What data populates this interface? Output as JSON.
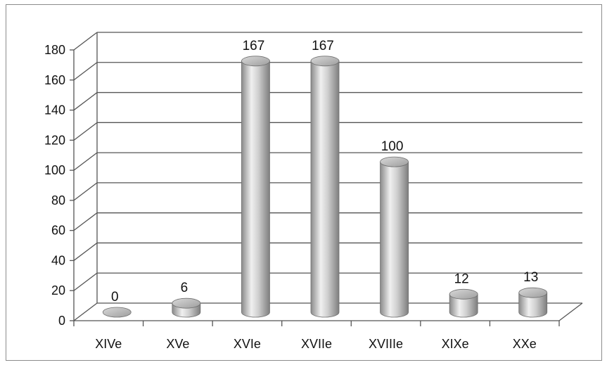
{
  "chart_data": {
    "type": "bar",
    "style": "3d-cylinder",
    "title": "",
    "xlabel": "",
    "ylabel": "",
    "categories": [
      "XIVe",
      "XVe",
      "XVIe",
      "XVIIe",
      "XVIIIe",
      "XIXe",
      "XXe"
    ],
    "values": [
      0,
      6,
      167,
      167,
      100,
      12,
      13
    ],
    "data_labels": [
      "0",
      "6",
      "167",
      "167",
      "100",
      "12",
      "13"
    ],
    "ylim": [
      0,
      180
    ],
    "yticks": [
      "0",
      "20",
      "40",
      "60",
      "80",
      "100",
      "120",
      "140",
      "160",
      "180"
    ],
    "grid": true,
    "legend": "none",
    "colors": {
      "bar": "#a9a9a9",
      "bar_light": "#f2f2f2",
      "bar_dark": "#7a7a7a",
      "grid": "#555555",
      "frame": "#8c8c8c"
    }
  }
}
